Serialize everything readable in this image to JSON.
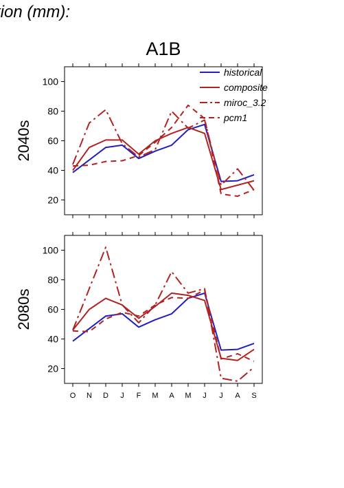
{
  "header": {
    "title": "tion (mm):"
  },
  "scenario": "A1B",
  "legend": {
    "entries": [
      {
        "name": "historical",
        "color": "#1f1fbf",
        "dash": "solid"
      },
      {
        "name": "composite",
        "color": "#b22222",
        "dash": "solid"
      },
      {
        "name": "miroc_3.2",
        "color": "#b22222",
        "dash": "dashdot"
      },
      {
        "name": "pcm1",
        "color": "#b22222",
        "dash": "dashed"
      }
    ]
  },
  "chart_data": [
    {
      "type": "line",
      "title": "2040s",
      "ylabel": "2040s",
      "categories": [
        "O",
        "N",
        "D",
        "J",
        "F",
        "M",
        "A",
        "M",
        "J",
        "J",
        "A",
        "S"
      ],
      "ylim": [
        10,
        110
      ],
      "yticks": [
        20,
        40,
        60,
        80,
        100
      ],
      "show_xticklabels": false,
      "series": [
        {
          "name": "historical",
          "values": [
            38.5,
            47,
            55.5,
            57,
            48,
            53,
            57,
            67.5,
            71,
            32.5,
            33,
            37
          ]
        },
        {
          "name": "composite",
          "values": [
            40,
            55.5,
            60.5,
            60.5,
            51,
            60,
            65,
            69,
            65,
            27,
            30,
            33
          ]
        },
        {
          "name": "miroc_3.2",
          "values": [
            44,
            72,
            81,
            58,
            49,
            54,
            80,
            68.5,
            74,
            30,
            41,
            26.5
          ]
        },
        {
          "name": "pcm1",
          "values": [
            43,
            43.5,
            46,
            46.5,
            50,
            59,
            69,
            84,
            75,
            24,
            22.5,
            27
          ]
        }
      ]
    },
    {
      "type": "line",
      "title": "2080s",
      "ylabel": "2080s",
      "categories": [
        "O",
        "N",
        "D",
        "J",
        "F",
        "M",
        "A",
        "M",
        "J",
        "J",
        "A",
        "S"
      ],
      "ylim": [
        10,
        110
      ],
      "yticks": [
        20,
        40,
        60,
        80,
        100
      ],
      "show_xticklabels": true,
      "series": [
        {
          "name": "historical",
          "values": [
            38.5,
            47,
            55.5,
            57,
            48,
            53,
            57,
            67.5,
            71,
            32.5,
            33,
            37
          ]
        },
        {
          "name": "composite",
          "values": [
            46,
            60,
            67.5,
            63,
            54,
            62,
            71,
            69.5,
            66,
            27,
            25.5,
            33
          ]
        },
        {
          "name": "miroc_3.2",
          "values": [
            46,
            74,
            102,
            63,
            51,
            63,
            85.5,
            71,
            74,
            13.5,
            11.5,
            21
          ]
        },
        {
          "name": "pcm1",
          "values": [
            45.5,
            45,
            53.5,
            58,
            55.5,
            63,
            68,
            67.5,
            73,
            26.5,
            30,
            25
          ]
        }
      ]
    }
  ]
}
